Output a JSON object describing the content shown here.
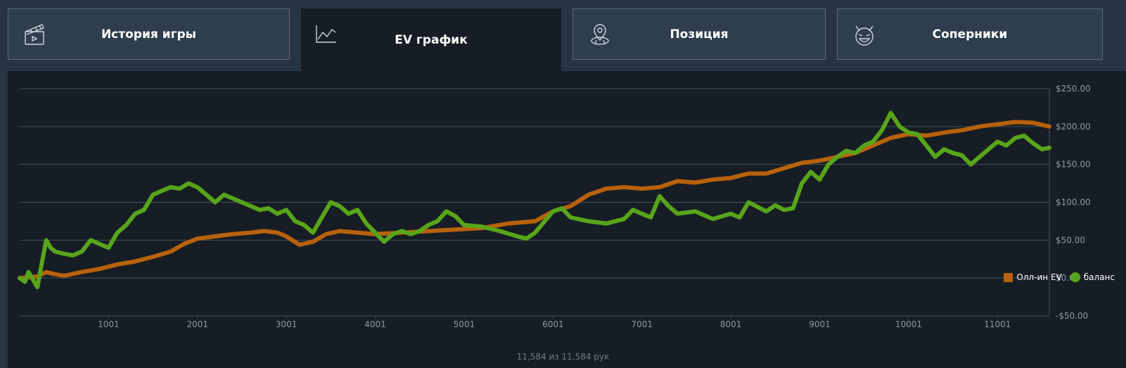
{
  "tabs": [
    {
      "id": "history",
      "label": "История игры",
      "icon": "clapperboard-icon",
      "active": false
    },
    {
      "id": "ev",
      "label": "EV график",
      "icon": "line-chart-icon",
      "active": true
    },
    {
      "id": "position",
      "label": "Позиция",
      "icon": "location-pin-icon",
      "active": false
    },
    {
      "id": "opponents",
      "label": "Соперники",
      "icon": "cat-face-icon",
      "active": false
    }
  ],
  "colors": {
    "ev": "#b8620c",
    "balance": "#57a51a",
    "grid": "#46505b",
    "panel": "#171d25"
  },
  "legend": {
    "ev_label": "Олл-ин EV",
    "balance_label": "баланс"
  },
  "footer": {
    "text": "11,584 из 11,584 рук"
  },
  "chart_data": {
    "type": "line",
    "title": "",
    "xlabel": "",
    "ylabel": "",
    "xlim": [
      1,
      11584
    ],
    "ylim": [
      -50,
      250
    ],
    "x_ticks": [
      1001,
      2001,
      3001,
      4001,
      5001,
      6001,
      7001,
      8001,
      9001,
      10001,
      11001
    ],
    "y_ticks": [
      -50,
      0,
      50,
      100,
      150,
      200,
      250
    ],
    "y_tick_labels": [
      "-$50.00",
      "$0.00",
      "$50.00",
      "$100.00",
      "$150.00",
      "$200.00",
      "$250.00"
    ],
    "grid": true,
    "legend_position": "bottom-right",
    "series": [
      {
        "name": "Олл-ин EV",
        "color": "#b8620c",
        "x": [
          1,
          200,
          300,
          400,
          500,
          700,
          900,
          1100,
          1300,
          1500,
          1700,
          1850,
          2000,
          2200,
          2400,
          2600,
          2750,
          2900,
          3000,
          3150,
          3300,
          3450,
          3600,
          3800,
          4000,
          4300,
          4600,
          4900,
          5200,
          5500,
          5800,
          6000,
          6200,
          6400,
          6600,
          6800,
          7000,
          7200,
          7400,
          7600,
          7800,
          8000,
          8200,
          8400,
          8600,
          8800,
          9000,
          9200,
          9400,
          9600,
          9800,
          10000,
          10200,
          10400,
          10600,
          10800,
          11000,
          11200,
          11400,
          11584
        ],
        "y": [
          0,
          2,
          8,
          5,
          3,
          8,
          12,
          18,
          22,
          28,
          35,
          45,
          52,
          55,
          58,
          60,
          62,
          60,
          55,
          44,
          48,
          58,
          62,
          60,
          58,
          60,
          62,
          64,
          66,
          72,
          75,
          88,
          95,
          110,
          118,
          120,
          118,
          120,
          128,
          126,
          130,
          132,
          138,
          138,
          145,
          152,
          155,
          160,
          165,
          175,
          185,
          190,
          188,
          192,
          195,
          200,
          203,
          206,
          205,
          200
        ]
      },
      {
        "name": "баланс",
        "color": "#57a51a",
        "x": [
          1,
          60,
          100,
          150,
          200,
          250,
          300,
          350,
          400,
          500,
          600,
          700,
          800,
          900,
          1000,
          1100,
          1200,
          1300,
          1400,
          1500,
          1600,
          1700,
          1800,
          1900,
          2000,
          2100,
          2200,
          2300,
          2400,
          2500,
          2600,
          2700,
          2800,
          2900,
          3000,
          3100,
          3200,
          3300,
          3400,
          3500,
          3600,
          3700,
          3800,
          3900,
          4000,
          4100,
          4200,
          4300,
          4400,
          4500,
          4600,
          4700,
          4800,
          4900,
          5000,
          5200,
          5400,
          5600,
          5700,
          5800,
          6000,
          6100,
          6200,
          6400,
          6600,
          6800,
          6900,
          7000,
          7100,
          7200,
          7300,
          7400,
          7600,
          7800,
          8000,
          8100,
          8200,
          8400,
          8500,
          8600,
          8700,
          8800,
          8900,
          9000,
          9100,
          9200,
          9300,
          9400,
          9500,
          9600,
          9700,
          9800,
          9900,
          10000,
          10100,
          10200,
          10300,
          10400,
          10500,
          10600,
          10700,
          10800,
          10900,
          11000,
          11100,
          11200,
          11300,
          11400,
          11500,
          11584
        ],
        "y": [
          0,
          -5,
          8,
          -2,
          -12,
          20,
          50,
          40,
          35,
          32,
          30,
          35,
          50,
          45,
          40,
          60,
          70,
          85,
          90,
          110,
          115,
          120,
          118,
          125,
          120,
          110,
          100,
          110,
          105,
          100,
          95,
          90,
          92,
          85,
          90,
          75,
          70,
          60,
          80,
          100,
          95,
          85,
          90,
          72,
          60,
          48,
          58,
          62,
          58,
          62,
          70,
          75,
          88,
          82,
          70,
          68,
          62,
          55,
          52,
          60,
          88,
          92,
          80,
          75,
          72,
          78,
          90,
          85,
          80,
          108,
          95,
          85,
          88,
          78,
          85,
          80,
          100,
          88,
          96,
          90,
          92,
          125,
          140,
          130,
          150,
          160,
          168,
          165,
          175,
          180,
          195,
          218,
          200,
          192,
          190,
          175,
          160,
          170,
          165,
          162,
          150,
          160,
          170,
          180,
          175,
          185,
          188,
          178,
          170,
          172
        ]
      }
    ]
  }
}
